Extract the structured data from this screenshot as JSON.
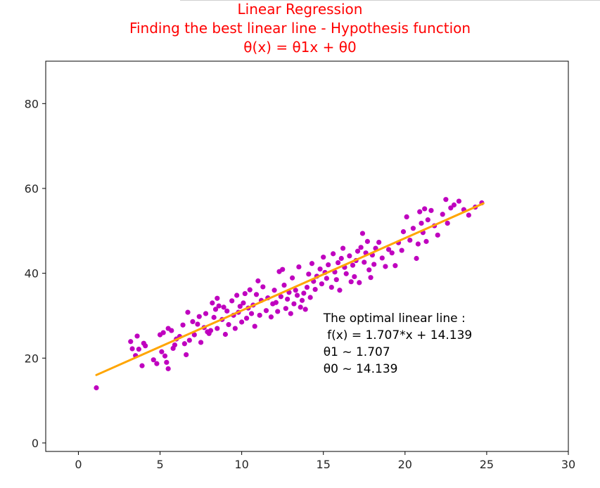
{
  "chart_data": {
    "type": "scatter",
    "title_lines": [
      "Linear Regression",
      "Finding the best linear line - Hypothesis function",
      "θ(x) = θ1x + θ0"
    ],
    "title_color": "#ff0000",
    "xlabel": "",
    "ylabel": "",
    "xlim": [
      -2,
      30
    ],
    "ylim": [
      -2,
      90
    ],
    "xticks": [
      0,
      5,
      10,
      15,
      20,
      25,
      30
    ],
    "yticks": [
      0,
      20,
      40,
      60,
      80
    ],
    "grid": false,
    "point_color": "#bf00bf",
    "line_color": "#ffa500",
    "regression": {
      "slope": 1.707,
      "intercept": 14.139,
      "x_range": [
        1.1,
        24.8
      ]
    },
    "annotation": {
      "lines": [
        "The optimal linear line :",
        " f(x) = 1.707*x + 14.139",
        "θ1 ~ 1.707",
        "θ0 ~ 14.139"
      ],
      "x": 15,
      "y": 28.5
    },
    "points": [
      [
        1.1,
        13.0
      ],
      [
        3.2,
        23.9
      ],
      [
        3.3,
        22.2
      ],
      [
        3.5,
        20.6
      ],
      [
        3.6,
        25.2
      ],
      [
        3.7,
        22.1
      ],
      [
        3.9,
        18.2
      ],
      [
        4.0,
        23.5
      ],
      [
        4.1,
        22.9
      ],
      [
        4.6,
        19.6
      ],
      [
        4.8,
        18.7
      ],
      [
        5.0,
        25.5
      ],
      [
        5.1,
        21.5
      ],
      [
        5.2,
        26.0
      ],
      [
        5.3,
        20.5
      ],
      [
        5.4,
        19.0
      ],
      [
        5.5,
        17.5
      ],
      [
        5.5,
        27.0
      ],
      [
        5.7,
        26.5
      ],
      [
        5.8,
        22.3
      ],
      [
        5.9,
        23.1
      ],
      [
        6.0,
        24.5
      ],
      [
        6.2,
        25.1
      ],
      [
        6.4,
        27.8
      ],
      [
        6.5,
        23.4
      ],
      [
        6.6,
        20.8
      ],
      [
        6.7,
        30.8
      ],
      [
        6.8,
        24.2
      ],
      [
        7.0,
        28.6
      ],
      [
        7.1,
        25.5
      ],
      [
        7.3,
        28.0
      ],
      [
        7.4,
        29.8
      ],
      [
        7.5,
        23.7
      ],
      [
        7.7,
        27.2
      ],
      [
        7.8,
        30.5
      ],
      [
        7.9,
        26.2
      ],
      [
        8.0,
        25.8
      ],
      [
        8.1,
        26.5
      ],
      [
        8.2,
        33.0
      ],
      [
        8.3,
        29.6
      ],
      [
        8.4,
        31.5
      ],
      [
        8.5,
        27.0
      ],
      [
        8.5,
        34.1
      ],
      [
        8.6,
        32.3
      ],
      [
        8.8,
        29.1
      ],
      [
        8.9,
        32.0
      ],
      [
        9.0,
        25.6
      ],
      [
        9.1,
        31.1
      ],
      [
        9.2,
        27.9
      ],
      [
        9.4,
        33.5
      ],
      [
        9.5,
        30.1
      ],
      [
        9.6,
        27.0
      ],
      [
        9.7,
        34.8
      ],
      [
        9.8,
        30.8
      ],
      [
        9.9,
        32.2
      ],
      [
        10.0,
        28.5
      ],
      [
        10.1,
        33.0
      ],
      [
        10.2,
        35.2
      ],
      [
        10.3,
        29.4
      ],
      [
        10.4,
        31.8
      ],
      [
        10.5,
        36.1
      ],
      [
        10.6,
        30.5
      ],
      [
        10.7,
        32.5
      ],
      [
        10.8,
        27.5
      ],
      [
        10.9,
        35.0
      ],
      [
        11.0,
        38.2
      ],
      [
        11.1,
        30.1
      ],
      [
        11.2,
        33.6
      ],
      [
        11.3,
        36.8
      ],
      [
        11.5,
        31.2
      ],
      [
        11.6,
        34.2
      ],
      [
        11.8,
        29.7
      ],
      [
        11.9,
        32.8
      ],
      [
        12.0,
        36.0
      ],
      [
        12.1,
        33.1
      ],
      [
        12.2,
        31.0
      ],
      [
        12.3,
        40.4
      ],
      [
        12.4,
        34.5
      ],
      [
        12.5,
        40.9
      ],
      [
        12.6,
        37.2
      ],
      [
        12.7,
        31.7
      ],
      [
        12.8,
        33.9
      ],
      [
        12.9,
        35.5
      ],
      [
        13.0,
        30.5
      ],
      [
        13.1,
        38.9
      ],
      [
        13.2,
        32.8
      ],
      [
        13.3,
        36.0
      ],
      [
        13.4,
        34.8
      ],
      [
        13.5,
        41.5
      ],
      [
        13.6,
        32.0
      ],
      [
        13.7,
        33.6
      ],
      [
        13.8,
        35.3
      ],
      [
        13.9,
        31.5
      ],
      [
        14.0,
        36.7
      ],
      [
        14.1,
        39.8
      ],
      [
        14.2,
        34.3
      ],
      [
        14.3,
        42.3
      ],
      [
        14.4,
        38.1
      ],
      [
        14.5,
        36.2
      ],
      [
        14.6,
        39.3
      ],
      [
        14.8,
        41.0
      ],
      [
        14.9,
        37.5
      ],
      [
        15.0,
        43.8
      ],
      [
        15.1,
        40.2
      ],
      [
        15.2,
        38.8
      ],
      [
        15.3,
        42.0
      ],
      [
        15.5,
        36.7
      ],
      [
        15.6,
        44.6
      ],
      [
        15.7,
        40.3
      ],
      [
        15.8,
        38.5
      ],
      [
        15.9,
        42.5
      ],
      [
        16.0,
        36.0
      ],
      [
        16.1,
        43.5
      ],
      [
        16.2,
        45.9
      ],
      [
        16.3,
        41.4
      ],
      [
        16.4,
        39.9
      ],
      [
        16.6,
        44.1
      ],
      [
        16.7,
        38.0
      ],
      [
        16.8,
        41.9
      ],
      [
        16.9,
        39.2
      ],
      [
        17.0,
        43.0
      ],
      [
        17.1,
        45.2
      ],
      [
        17.2,
        37.8
      ],
      [
        17.3,
        46.1
      ],
      [
        17.4,
        49.4
      ],
      [
        17.5,
        42.6
      ],
      [
        17.6,
        44.8
      ],
      [
        17.7,
        47.5
      ],
      [
        17.8,
        40.8
      ],
      [
        17.9,
        39.0
      ],
      [
        18.0,
        44.3
      ],
      [
        18.1,
        42.1
      ],
      [
        18.2,
        45.9
      ],
      [
        18.4,
        47.3
      ],
      [
        18.6,
        43.6
      ],
      [
        18.8,
        41.6
      ],
      [
        19.0,
        45.6
      ],
      [
        19.2,
        44.8
      ],
      [
        19.4,
        41.8
      ],
      [
        19.6,
        47.2
      ],
      [
        19.8,
        45.4
      ],
      [
        19.9,
        49.8
      ],
      [
        20.1,
        53.3
      ],
      [
        20.3,
        47.8
      ],
      [
        20.5,
        50.6
      ],
      [
        20.7,
        43.5
      ],
      [
        20.8,
        46.9
      ],
      [
        20.9,
        54.5
      ],
      [
        21.0,
        51.8
      ],
      [
        21.1,
        49.6
      ],
      [
        21.2,
        55.2
      ],
      [
        21.3,
        47.5
      ],
      [
        21.4,
        52.6
      ],
      [
        21.6,
        54.8
      ],
      [
        21.8,
        51.2
      ],
      [
        22.0,
        49.0
      ],
      [
        22.3,
        53.9
      ],
      [
        22.5,
        57.4
      ],
      [
        22.6,
        51.8
      ],
      [
        22.8,
        55.4
      ],
      [
        23.0,
        56.1
      ],
      [
        23.3,
        57.0
      ],
      [
        23.6,
        55.0
      ],
      [
        23.9,
        53.7
      ],
      [
        24.3,
        55.6
      ],
      [
        24.7,
        56.6
      ]
    ]
  }
}
